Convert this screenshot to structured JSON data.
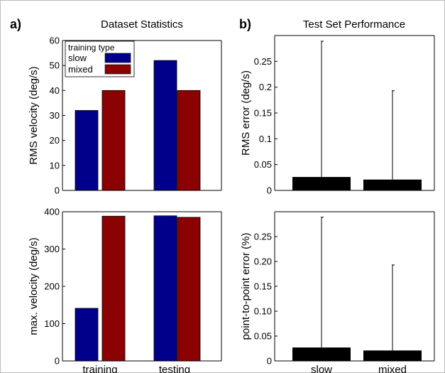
{
  "panel_labels": {
    "a": "a)",
    "b": "b)"
  },
  "panel_titles": {
    "a": "Dataset Statistics",
    "b": "Test Set Performance"
  },
  "colors": {
    "slow": "#00008b",
    "mixed": "#8b0000",
    "error_bar": "#000000",
    "frame": "#000000"
  },
  "chart_data": [
    {
      "type": "bar",
      "panel": "a-top",
      "title": "Dataset Statistics",
      "ylabel": "RMS velocity (deg/s)",
      "categories": [
        "training",
        "testing"
      ],
      "series": [
        {
          "name": "slow",
          "values": [
            32,
            52
          ]
        },
        {
          "name": "mixed",
          "values": [
            40,
            40
          ]
        }
      ],
      "ylim": [
        0,
        60
      ],
      "yticks": [
        0,
        10,
        20,
        30,
        40,
        50,
        60
      ],
      "ytick_labels": [
        "0",
        "10",
        "20",
        "30",
        "40",
        "50",
        "60"
      ],
      "legend": {
        "title": "training type",
        "placement": "top-left"
      }
    },
    {
      "type": "bar",
      "panel": "a-bottom",
      "ylabel": "max. velocity (deg/s)",
      "categories": [
        "training",
        "testing"
      ],
      "series": [
        {
          "name": "slow",
          "values": [
            141,
            389
          ]
        },
        {
          "name": "mixed",
          "values": [
            388,
            385
          ]
        }
      ],
      "ylim": [
        0,
        400
      ],
      "yticks": [
        0,
        100,
        200,
        300,
        400
      ],
      "ytick_labels": [
        "0",
        "100",
        "200",
        "300",
        "400"
      ]
    },
    {
      "type": "bar",
      "panel": "b-top",
      "title": "Test Set Performance",
      "ylabel": "RMS error (deg/s)",
      "categories": [
        "slow",
        "mixed"
      ],
      "values": [
        0.026,
        0.021
      ],
      "error_upper": [
        0.289,
        0.193
      ],
      "ylim": [
        0,
        0.3
      ],
      "yticks": [
        0,
        0.05,
        0.1,
        0.15,
        0.2,
        0.25
      ],
      "ytick_labels": [
        "0",
        "0.05",
        "0.1",
        "0.15",
        "0.2",
        "0.25"
      ]
    },
    {
      "type": "bar",
      "panel": "b-bottom",
      "ylabel": "point-to-point error (%)",
      "categories": [
        "slow",
        "mixed"
      ],
      "values": [
        0.027,
        0.021
      ],
      "error_upper": [
        0.289,
        0.193
      ],
      "ylim": [
        0,
        0.3
      ],
      "yticks": [
        0,
        0.05,
        0.1,
        0.15,
        0.2,
        0.25
      ],
      "ytick_labels": [
        "0",
        "0.05",
        "0.10",
        "0.15",
        "0.20",
        "0.25"
      ]
    }
  ]
}
